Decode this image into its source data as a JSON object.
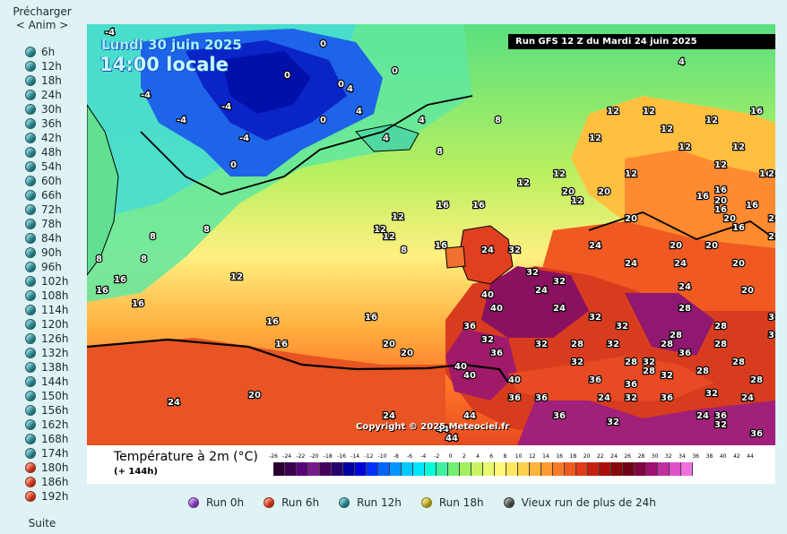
{
  "left_panel": {
    "preload_label": "Précharger",
    "anim_label": "< Anim >",
    "steps": [
      {
        "label": "6h",
        "color": "#2f9aa6"
      },
      {
        "label": "12h",
        "color": "#2f9aa6"
      },
      {
        "label": "18h",
        "color": "#2f9aa6"
      },
      {
        "label": "24h",
        "color": "#2f9aa6"
      },
      {
        "label": "30h",
        "color": "#2f9aa6"
      },
      {
        "label": "36h",
        "color": "#2f9aa6"
      },
      {
        "label": "42h",
        "color": "#2f9aa6"
      },
      {
        "label": "48h",
        "color": "#2f9aa6"
      },
      {
        "label": "54h",
        "color": "#2f9aa6"
      },
      {
        "label": "60h",
        "color": "#2f9aa6"
      },
      {
        "label": "66h",
        "color": "#2f9aa6"
      },
      {
        "label": "72h",
        "color": "#2f9aa6"
      },
      {
        "label": "78h",
        "color": "#2f9aa6"
      },
      {
        "label": "84h",
        "color": "#2f9aa6"
      },
      {
        "label": "90h",
        "color": "#2f9aa6"
      },
      {
        "label": "96h",
        "color": "#2f9aa6"
      },
      {
        "label": "102h",
        "color": "#2f9aa6"
      },
      {
        "label": "108h",
        "color": "#2f9aa6"
      },
      {
        "label": "114h",
        "color": "#2f9aa6"
      },
      {
        "label": "120h",
        "color": "#2f9aa6"
      },
      {
        "label": "126h",
        "color": "#2f9aa6"
      },
      {
        "label": "132h",
        "color": "#2f9aa6"
      },
      {
        "label": "138h",
        "color": "#2f9aa6"
      },
      {
        "label": "144h",
        "color": "#2f9aa6"
      },
      {
        "label": "150h",
        "color": "#2f9aa6"
      },
      {
        "label": "156h",
        "color": "#2f9aa6"
      },
      {
        "label": "162h",
        "color": "#2f9aa6"
      },
      {
        "label": "168h",
        "color": "#2f9aa6"
      },
      {
        "label": "174h",
        "color": "#2f9aa6"
      },
      {
        "label": "180h",
        "color": "#f0401e"
      },
      {
        "label": "186h",
        "color": "#f0401e"
      },
      {
        "label": "192h",
        "color": "#f0401e"
      }
    ],
    "suite_label": "Suite"
  },
  "map": {
    "date_label": "Lundi 30 juin 2025",
    "time_label": "14:00 locale",
    "run_info": "Run GFS 12 Z du Mardi 24 juin 2025",
    "copyright": "Copyright © 2025 Meteociel.fr",
    "temperature_labels": [
      "-4",
      "-4",
      "-4",
      "-4",
      "-4",
      "0",
      "0",
      "0",
      "0",
      "0",
      "0",
      "4",
      "4",
      "4",
      "4",
      "4",
      "8",
      "8",
      "8",
      "8",
      "8",
      "8",
      "8",
      "12",
      "12",
      "12",
      "12",
      "12",
      "12",
      "12",
      "12",
      "12",
      "12",
      "12",
      "12",
      "12",
      "12",
      "12",
      "12",
      "16",
      "16",
      "16",
      "16",
      "16",
      "16",
      "16",
      "16",
      "16",
      "16",
      "16",
      "16",
      "16",
      "16",
      "16",
      "16",
      "20",
      "20",
      "20",
      "20",
      "20",
      "20",
      "20",
      "20",
      "20",
      "20",
      "20",
      "20",
      "20",
      "20",
      "20",
      "24",
      "24",
      "24",
      "24",
      "24",
      "24",
      "24",
      "24",
      "24",
      "24",
      "24",
      "24",
      "28",
      "28",
      "28",
      "28",
      "28",
      "28",
      "28",
      "28",
      "28",
      "28",
      "28",
      "32",
      "32",
      "32",
      "32",
      "32",
      "32",
      "32",
      "32",
      "32",
      "32",
      "32",
      "32",
      "32",
      "32",
      "32",
      "36",
      "36",
      "36",
      "36",
      "36",
      "36",
      "36",
      "36",
      "36",
      "36",
      "36",
      "36",
      "36",
      "40",
      "40",
      "40",
      "40",
      "40",
      "44",
      "44",
      "44"
    ]
  },
  "legend": {
    "title": "Température à 2m (°C)",
    "subtitle": "(+ 144h)",
    "scale_values": [
      "-26",
      "-24",
      "-22",
      "-20",
      "-18",
      "-16",
      "-14",
      "-12",
      "-10",
      "-8",
      "-6",
      "-4",
      "-2",
      "0",
      "2",
      "4",
      "6",
      "8",
      "10",
      "12",
      "14",
      "16",
      "18",
      "20",
      "22",
      "24",
      "26",
      "28",
      "30",
      "32",
      "34",
      "36",
      "38",
      "40",
      "42",
      "44"
    ],
    "scale_colors": [
      "#2a0030",
      "#3c0050",
      "#5a007a",
      "#7a1a8a",
      "#46005a",
      "#28006e",
      "#0000a0",
      "#0000d8",
      "#0030ff",
      "#0064ff",
      "#0096ff",
      "#00c8ff",
      "#00e6ff",
      "#00ffd8",
      "#40f0a0",
      "#70f070",
      "#a0f060",
      "#c8f460",
      "#e8f870",
      "#fff87a",
      "#ffe860",
      "#ffd04a",
      "#ffb43a",
      "#ff9a30",
      "#ff7a28",
      "#f05a20",
      "#e03a18",
      "#c82010",
      "#a81008",
      "#880808",
      "#700018",
      "#800040",
      "#a01070",
      "#c030a0",
      "#e050c8",
      "#f070e0"
    ]
  },
  "run_legend": [
    {
      "label": "Run 0h",
      "color": "#9a44d6"
    },
    {
      "label": "Run 6h",
      "color": "#f0401e"
    },
    {
      "label": "Run 12h",
      "color": "#2f9aa6"
    },
    {
      "label": "Run 18h",
      "color": "#d8c020"
    },
    {
      "label": "Vieux run de plus de 24h",
      "color": "#555555"
    }
  ]
}
